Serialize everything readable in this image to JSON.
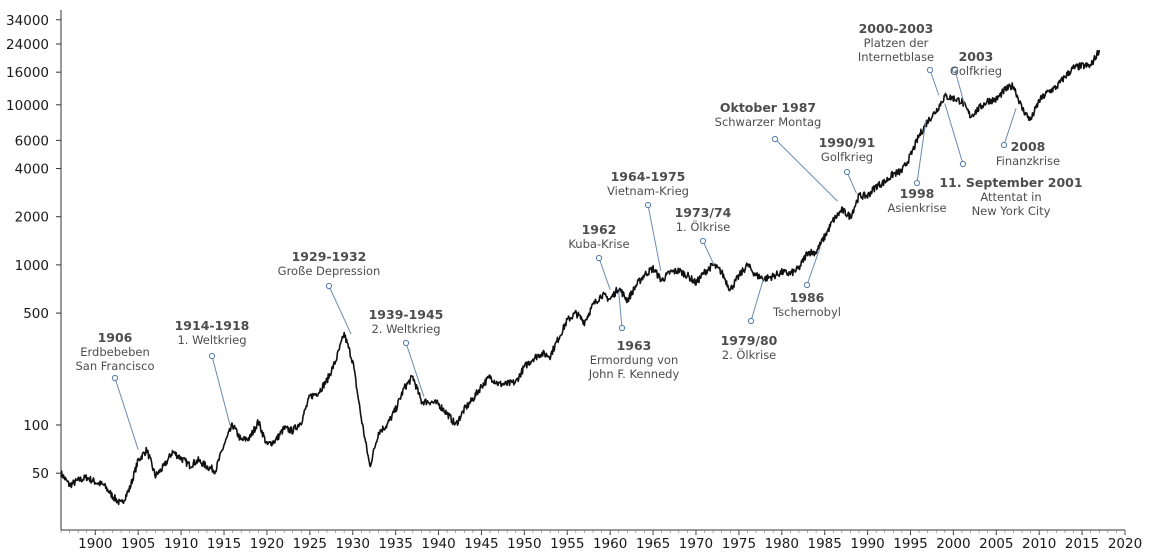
{
  "chart_data": {
    "type": "line",
    "title": "",
    "xlabel": "",
    "ylabel": "",
    "yscale": "log",
    "xlim": [
      1896,
      2020
    ],
    "ylim": [
      28,
      40000
    ],
    "x_ticks": [
      "1900",
      "1905",
      "1910",
      "1915",
      "1920",
      "1925",
      "1930",
      "1935",
      "1940",
      "1945",
      "1950",
      "1955",
      "1960",
      "1965",
      "1970",
      "1975",
      "1980",
      "1985",
      "1990",
      "1995",
      "2000",
      "2005",
      "2010",
      "2015",
      "2020"
    ],
    "y_ticks": [
      "34000",
      "24000",
      "16000",
      "10000",
      "6000",
      "4000",
      "2000",
      "1000",
      "500",
      "100",
      "50"
    ],
    "series": [
      {
        "x": [
          1896,
          1897,
          1898,
          1899,
          1900,
          1901,
          1902,
          1903,
          1904,
          1905,
          1906,
          1907,
          1908,
          1909,
          1910,
          1911,
          1912,
          1913,
          1914,
          1915,
          1916,
          1917,
          1918,
          1919,
          1920,
          1921,
          1922,
          1923,
          1924,
          1925,
          1926,
          1927,
          1928,
          1929,
          1930,
          1931,
          1932,
          1933,
          1934,
          1935,
          1936,
          1937,
          1938,
          1939,
          1940,
          1941,
          1942,
          1943,
          1944,
          1945,
          1946,
          1947,
          1948,
          1949,
          1950,
          1951,
          1952,
          1953,
          1954,
          1955,
          1956,
          1957,
          1958,
          1959,
          1960,
          1961,
          1962,
          1963,
          1964,
          1965,
          1966,
          1967,
          1968,
          1969,
          1970,
          1971,
          1972,
          1973,
          1974,
          1975,
          1976,
          1977,
          1978,
          1979,
          1980,
          1981,
          1982,
          1983,
          1984,
          1985,
          1986,
          1987,
          1988,
          1989,
          1990,
          1991,
          1992,
          1993,
          1994,
          1995,
          1996,
          1997,
          1998,
          1999,
          2000,
          2001,
          2002,
          2003,
          2004,
          2005,
          2006,
          2007,
          2008,
          2009,
          2010,
          2011,
          2012,
          2013,
          2014,
          2015,
          2016,
          2017
        ],
        "y": [
          50,
          42,
          45,
          47,
          44,
          42,
          36,
          32,
          40,
          60,
          70,
          48,
          55,
          68,
          62,
          56,
          60,
          55,
          52,
          75,
          100,
          80,
          83,
          105,
          75,
          80,
          95,
          92,
          105,
          150,
          160,
          190,
          250,
          370,
          250,
          110,
          55,
          90,
          100,
          125,
          170,
          200,
          140,
          140,
          135,
          118,
          100,
          125,
          145,
          175,
          200,
          180,
          180,
          185,
          230,
          260,
          280,
          270,
          350,
          450,
          500,
          440,
          560,
          650,
          610,
          720,
          600,
          740,
          870,
          950,
          800,
          900,
          920,
          860,
          770,
          900,
          1000,
          900,
          700,
          850,
          1000,
          860,
          820,
          850,
          900,
          880,
          950,
          1200,
          1200,
          1500,
          1900,
          2200,
          2000,
          2700,
          2700,
          3100,
          3300,
          3700,
          3850,
          4800,
          6400,
          7900,
          9200,
          11300,
          11000,
          10500,
          8500,
          9500,
          10600,
          10800,
          12400,
          13200,
          9500,
          8000,
          10600,
          12000,
          12900,
          15000,
          17000,
          17500,
          17500,
          22000
        ]
      }
    ],
    "annotations": [
      {
        "title": "1906",
        "subtitle": [
          "Erdbebeben",
          "San Francisco"
        ],
        "x": 1905.0,
        "y": 70
      },
      {
        "title": "1914-1918",
        "subtitle": [
          "1. Weltkrieg"
        ],
        "x": 1915.7,
        "y": 100
      },
      {
        "title": "1929-1932",
        "subtitle": [
          "Große Depression"
        ],
        "x": 1929.8,
        "y": 370
      },
      {
        "title": "1939-1945",
        "subtitle": [
          "2. Weltkrieg"
        ],
        "x": 1938.3,
        "y": 150
      },
      {
        "title": "1962",
        "subtitle": [
          "Kuba-Krise"
        ],
        "x": 1960.0,
        "y": 700
      },
      {
        "title": "1963",
        "subtitle": [
          "Ermordung von",
          "John F. Kennedy"
        ],
        "x": 1961.0,
        "y": 680
      },
      {
        "title": "1964-1975",
        "subtitle": [
          "Vietnam-Krieg"
        ],
        "x": 1965.9,
        "y": 920
      },
      {
        "title": "1973/74",
        "subtitle": [
          "1. Ölkrise"
        ],
        "x": 1972.1,
        "y": 1000
      },
      {
        "title": "1979/80",
        "subtitle": [
          "2. Ölkrise"
        ],
        "x": 1977.9,
        "y": 830
      },
      {
        "title": "Oktober 1987",
        "subtitle": [
          "Schwarzer Montag"
        ],
        "x": 1986.5,
        "y": 2500
      },
      {
        "title": "1986",
        "subtitle": [
          "Tschernobyl"
        ],
        "x": 1984.5,
        "y": 1300
      },
      {
        "title": "1990/91",
        "subtitle": [
          "Golfkrieg"
        ],
        "x": 1988.7,
        "y": 2800
      },
      {
        "title": "1998",
        "subtitle": [
          "Asienkrise"
        ],
        "x": 1996.8,
        "y": 8000
      },
      {
        "title": "2000-2003",
        "subtitle": [
          "Platzen der",
          "Internetblase"
        ],
        "x": 1998.3,
        "y": 11500
      },
      {
        "title": "11. September 2001",
        "subtitle": [
          "Attentat in",
          "New York City"
        ],
        "x": 1999.0,
        "y": 10200
      },
      {
        "title": "2003",
        "subtitle": [
          "Golfkrieg"
        ],
        "x": 2001.3,
        "y": 10000
      },
      {
        "title": "2008",
        "subtitle": [
          "Finanzkrise"
        ],
        "x": 2007.3,
        "y": 9500
      }
    ]
  }
}
